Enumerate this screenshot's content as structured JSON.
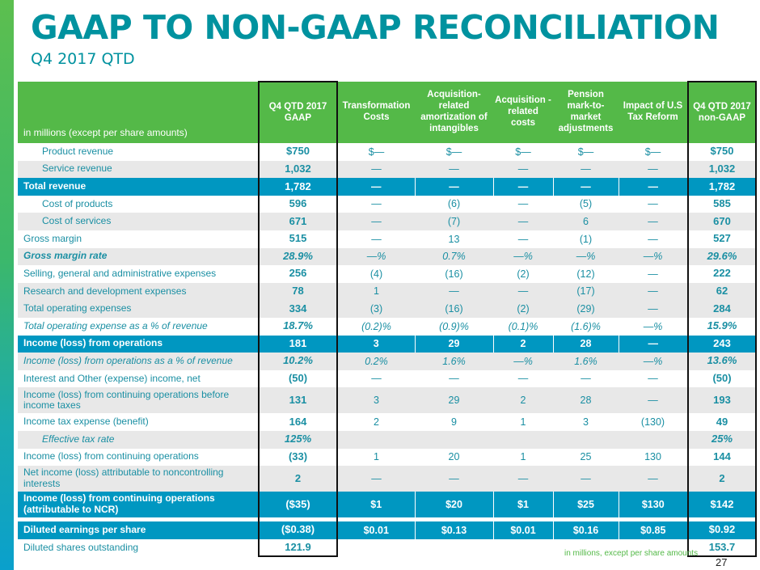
{
  "title": "GAAP TO NON-GAAP RECONCILIATION",
  "subtitle": "Q4 2017 QTD",
  "table": {
    "unit_label": "in millions (except per share amounts)",
    "columns": [
      "Q4 QTD 2017 GAAP",
      "Transformation Costs",
      "Acquisition-related amortization of intangibles",
      "Acquisition - related costs",
      "Pension mark-to-market adjustments",
      "Impact of U.S Tax Reform",
      "Q4 QTD 2017 non-GAAP"
    ],
    "rows": [
      {
        "label": "Product revenue",
        "style": "indent",
        "values": [
          "$750",
          "$—",
          "$—",
          "$—",
          "$—",
          "$—",
          "$750"
        ]
      },
      {
        "label": "Service revenue",
        "style": "indent shade",
        "values": [
          "1,032",
          "—",
          "—",
          "—",
          "—",
          "—",
          "1,032"
        ]
      },
      {
        "label": "Total revenue",
        "style": "blue",
        "values": [
          "1,782",
          "—",
          "—",
          "—",
          "—",
          "—",
          "1,782"
        ]
      },
      {
        "label": "Cost of products",
        "style": "indent",
        "values": [
          "596",
          "—",
          "(6)",
          "—",
          "(5)",
          "—",
          "585"
        ]
      },
      {
        "label": "Cost of services",
        "style": "indent shade",
        "values": [
          "671",
          "—",
          "(7)",
          "—",
          "6",
          "—",
          "670"
        ]
      },
      {
        "label": "Gross margin",
        "style": "",
        "values": [
          "515",
          "—",
          "13",
          "—",
          "(1)",
          "—",
          "527"
        ]
      },
      {
        "label": "Gross margin rate",
        "style": "shade italic bold",
        "values": [
          "28.9%",
          "—%",
          "0.7%",
          "—%",
          "—%",
          "—%",
          "29.6%"
        ]
      },
      {
        "label": "Selling, general and administrative expenses",
        "style": "",
        "values": [
          "256",
          "(4)",
          "(16)",
          "(2)",
          "(12)",
          "—",
          "222"
        ]
      },
      {
        "label": "Research and development expenses",
        "style": "shade",
        "values": [
          "78",
          "1",
          "—",
          "—",
          "(17)",
          "—",
          "62"
        ]
      },
      {
        "label": "Total operating expenses",
        "style": "shade",
        "values": [
          "334",
          "(3)",
          "(16)",
          "(2)",
          "(29)",
          "—",
          "284"
        ]
      },
      {
        "label": "Total operating expense as a % of revenue",
        "style": "italic",
        "values": [
          "18.7%",
          "(0.2)%",
          "(0.9)%",
          "(0.1)%",
          "(1.6)%",
          "—%",
          "15.9%"
        ]
      },
      {
        "label": "Income (loss) from operations",
        "style": "blue",
        "values": [
          "181",
          "3",
          "29",
          "2",
          "28",
          "—",
          "243"
        ]
      },
      {
        "label": "Income (loss) from operations as a % of revenue",
        "style": "shade italic",
        "values": [
          "10.2%",
          "0.2%",
          "1.6%",
          "—%",
          "1.6%",
          "—%",
          "13.6%"
        ]
      },
      {
        "label": "Interest and Other (expense) income, net",
        "style": "",
        "values": [
          "(50)",
          "—",
          "—",
          "—",
          "—",
          "—",
          "(50)"
        ]
      },
      {
        "label": "Income (loss) from continuing operations before income taxes",
        "style": "shade tall",
        "values": [
          "131",
          "3",
          "29",
          "2",
          "28",
          "—",
          "193"
        ]
      },
      {
        "label": "Income tax expense (benefit)",
        "style": "",
        "values": [
          "164",
          "2",
          "9",
          "1",
          "3",
          "(130)",
          "49"
        ]
      },
      {
        "label": "Effective tax rate",
        "style": "shade italic indent",
        "values": [
          "125%",
          "",
          "",
          "",
          "",
          "",
          "25%"
        ]
      },
      {
        "label": "Income (loss) from continuing operations",
        "style": "",
        "values": [
          "(33)",
          "1",
          "20",
          "1",
          "25",
          "130",
          "144"
        ]
      },
      {
        "label": "Net income (loss) attributable to noncontrolling interests",
        "style": "shade tall",
        "values": [
          "2",
          "—",
          "—",
          "—",
          "—",
          "—",
          "2"
        ]
      },
      {
        "label": "Income (loss) from continuing operations (attributable to NCR)",
        "style": "blue tall",
        "values": [
          "($35)",
          "$1",
          "$20",
          "$1",
          "$25",
          "$130",
          "$142"
        ]
      },
      {
        "label": "Diluted earnings per share",
        "style": "blue",
        "values": [
          "($0.38)",
          "$0.01",
          "$0.13",
          "$0.01",
          "$0.16",
          "$0.85",
          "$0.92"
        ]
      },
      {
        "label": "Diluted shares outstanding",
        "style": "last",
        "values": [
          "121.9",
          "",
          "",
          "",
          "",
          "",
          "153.7"
        ]
      }
    ]
  },
  "footnote": "in millions, except per share amounts",
  "page_number": "27",
  "colors": {
    "title": "#00929f",
    "header_green": "#54b948",
    "row_blue": "#0097c1",
    "text_teal": "#1a8fa3"
  }
}
